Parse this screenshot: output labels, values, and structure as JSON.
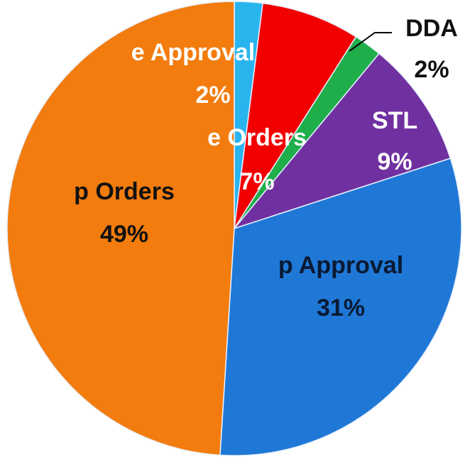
{
  "chart_data": {
    "type": "pie",
    "categories": [
      "e Approval",
      "e Orders",
      "DDA",
      "STL",
      "p Approval",
      "p Orders"
    ],
    "values": [
      2,
      7,
      2,
      9,
      31,
      49
    ],
    "value_labels": [
      "2%",
      "7%",
      "2%",
      "9%",
      "31%",
      "49%"
    ],
    "colors": [
      "#2ab4ee",
      "#f20000",
      "#1fae4a",
      "#7030a0",
      "#1f78d6",
      "#f27c0e"
    ]
  }
}
